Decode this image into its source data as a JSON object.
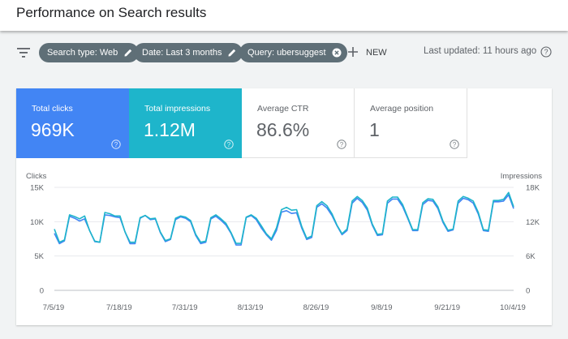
{
  "header": {
    "title": "Performance on Search results"
  },
  "filters": {
    "chips": [
      {
        "label": "Search type: Web",
        "icon": "pencil-icon"
      },
      {
        "label": "Date: Last 3 months",
        "icon": "pencil-icon"
      },
      {
        "label": "Query: ubersuggest",
        "icon": "close-circle-icon"
      }
    ],
    "new_label": "NEW",
    "last_updated": "Last updated: 11 hours ago"
  },
  "metrics": {
    "clicks": {
      "label": "Total clicks",
      "value": "969K",
      "color": "#4285f4"
    },
    "impressions": {
      "label": "Total impressions",
      "value": "1.12M",
      "color": "#1eb5cb"
    },
    "ctr": {
      "label": "Average CTR",
      "value": "86.6%"
    },
    "position": {
      "label": "Average position",
      "value": "1"
    }
  },
  "chart_data": {
    "type": "line",
    "left_axis_label": "Clicks",
    "right_axis_label": "Impressions",
    "left_ticks": [
      "15K",
      "10K",
      "5K",
      "0"
    ],
    "right_ticks": [
      "18K",
      "12K",
      "6K",
      "0"
    ],
    "ylim_left": [
      0,
      15000
    ],
    "ylim_right": [
      0,
      18000
    ],
    "grid": true,
    "x_ticks": [
      "7/5/19",
      "7/18/19",
      "7/31/19",
      "8/13/19",
      "8/26/19",
      "9/8/19",
      "9/21/19",
      "10/4/19"
    ],
    "series": [
      {
        "name": "Clicks",
        "axis": "left",
        "color": "#4285f4",
        "values": [
          8300,
          6800,
          7200,
          10800,
          10500,
          10100,
          10400,
          8700,
          7100,
          7000,
          11000,
          10900,
          10700,
          10600,
          8500,
          6800,
          6800,
          10500,
          10900,
          10300,
          10400,
          8400,
          7100,
          7400,
          10300,
          10700,
          10500,
          10000,
          8000,
          6800,
          7000,
          10400,
          10800,
          10200,
          9500,
          8300,
          6600,
          6600,
          10600,
          10900,
          10300,
          9100,
          8100,
          7300,
          8700,
          11400,
          11600,
          11200,
          11300,
          9100,
          7400,
          7700,
          12100,
          12600,
          12000,
          10900,
          9400,
          8100,
          8700,
          12700,
          13400,
          12800,
          11700,
          9500,
          8000,
          8100,
          12700,
          13300,
          13300,
          12200,
          10500,
          8700,
          8700,
          12500,
          13100,
          13000,
          11900,
          9900,
          8600,
          8800,
          12700,
          13400,
          13200,
          12700,
          11100,
          8700,
          8600,
          12900,
          12900,
          13000,
          13900,
          11900
        ]
      },
      {
        "name": "Impressions",
        "axis": "right",
        "color": "#1eb5cb",
        "values": [
          10700,
          8400,
          8800,
          13200,
          12900,
          12500,
          13000,
          10400,
          8600,
          8400,
          13600,
          13400,
          13000,
          13000,
          10200,
          8400,
          8400,
          12700,
          13100,
          12500,
          12600,
          10200,
          8700,
          9000,
          12600,
          13000,
          12800,
          12200,
          9800,
          8400,
          8600,
          12700,
          13200,
          12500,
          11700,
          10100,
          8200,
          8200,
          12800,
          13200,
          12600,
          11300,
          9900,
          9000,
          10900,
          14100,
          14500,
          14000,
          14100,
          11200,
          9100,
          9500,
          14800,
          15500,
          14800,
          13400,
          11400,
          9900,
          10700,
          15600,
          16400,
          15700,
          14400,
          11600,
          9800,
          9900,
          15600,
          16300,
          16300,
          15000,
          12800,
          10600,
          10600,
          15300,
          16000,
          15900,
          14600,
          12100,
          10500,
          10700,
          15600,
          16400,
          16100,
          15600,
          13600,
          10600,
          10500,
          15700,
          15700,
          15900,
          17100,
          14600
        ]
      }
    ]
  }
}
